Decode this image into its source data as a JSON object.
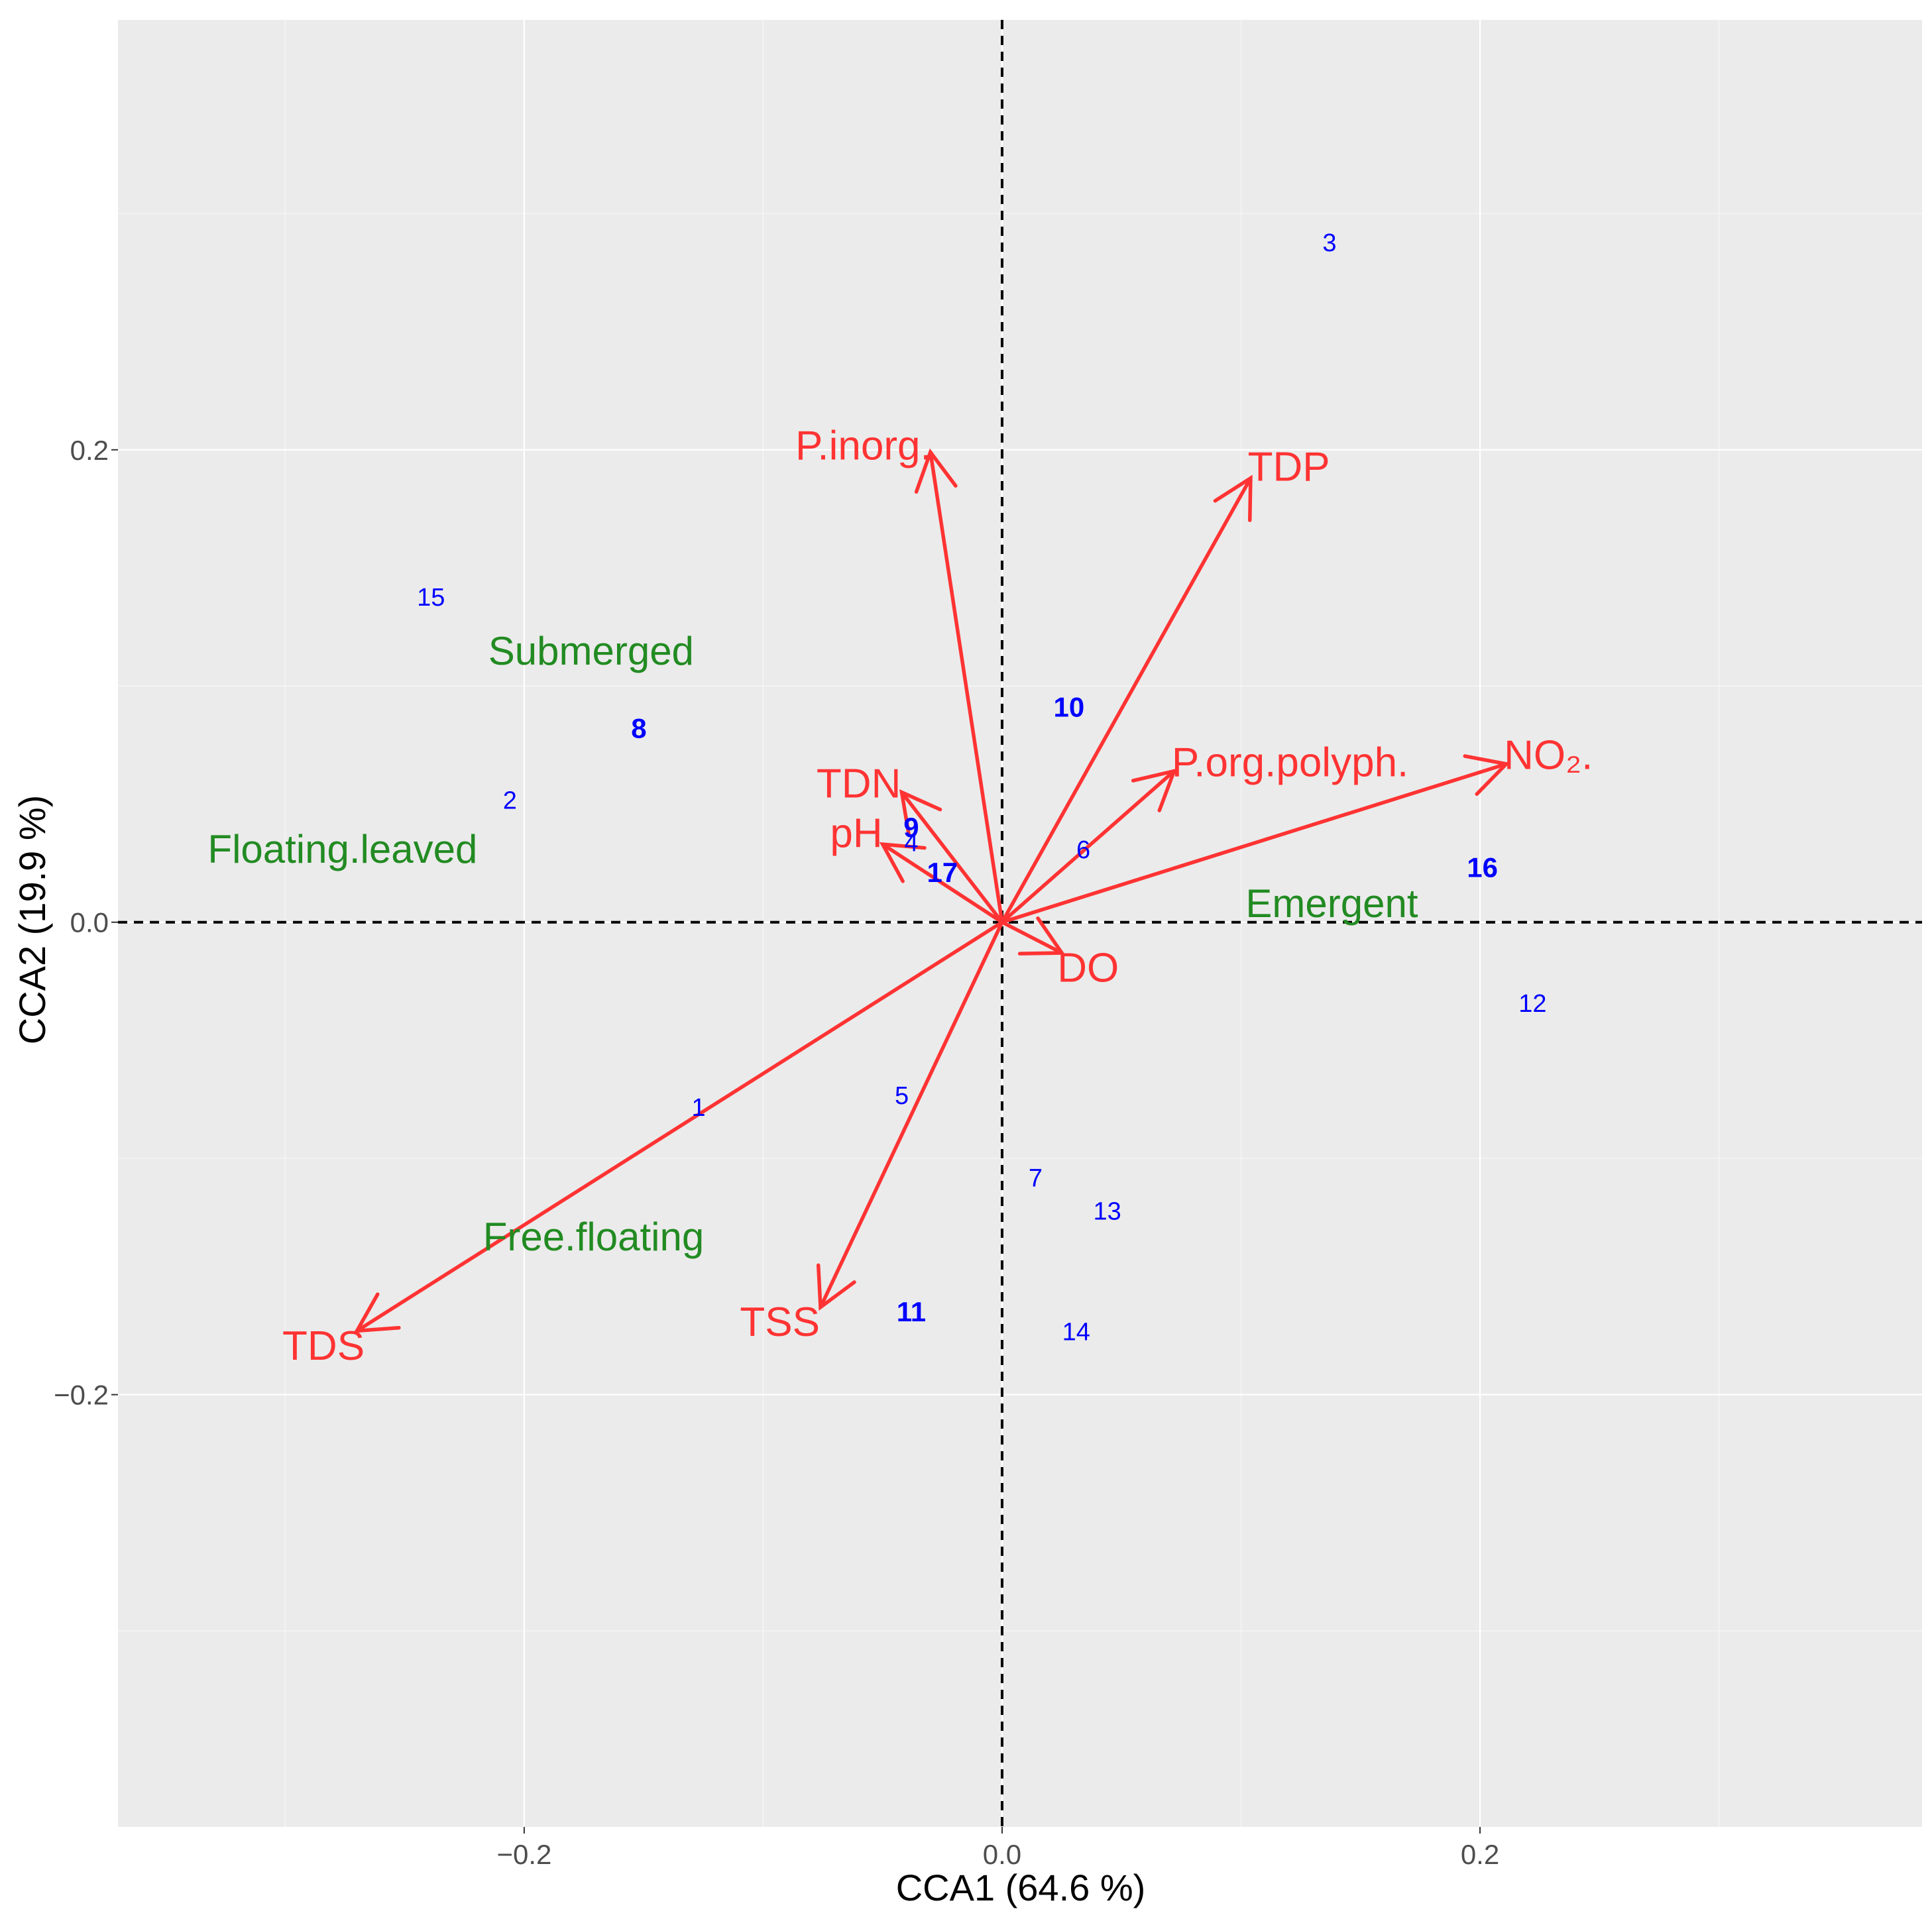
{
  "chart_data": {
    "type": "scatter",
    "subtype": "CCA biplot",
    "xlabel": "CCA1 (64.6 %)",
    "ylabel": "CCA2 (19.9 %)",
    "xlim": [
      -0.37,
      0.385
    ],
    "ylim": [
      -0.383,
      0.382
    ],
    "x_ticks": [
      {
        "value": -0.2,
        "label": "−0.2"
      },
      {
        "value": 0.0,
        "label": "0.0"
      },
      {
        "value": 0.2,
        "label": "0.2"
      }
    ],
    "y_ticks": [
      {
        "value": 0.2,
        "label": "0.2"
      },
      {
        "value": 0.0,
        "label": "0.0"
      },
      {
        "value": -0.2,
        "label": "−0.2"
      }
    ],
    "colors": {
      "arrows": "#ff3333",
      "sites": "#0000ff",
      "groups": "#228b22"
    },
    "environmental_vectors": [
      {
        "name": "P.inorg.",
        "x": -0.03,
        "y": 0.199,
        "label_x": -0.058,
        "label_y": 0.202,
        "label_anchor": "middle"
      },
      {
        "name": "TDP",
        "x": 0.104,
        "y": 0.188,
        "label_x": 0.12,
        "label_y": 0.193,
        "label_anchor": "middle"
      },
      {
        "name": "P.org.polyph.",
        "x": 0.072,
        "y": 0.064,
        "label_x": 0.071,
        "label_y": 0.068,
        "label_anchor": "start"
      },
      {
        "name": "NO₂.",
        "x": 0.211,
        "y": 0.067,
        "label_x": 0.21,
        "label_y": 0.071,
        "label_anchor": "start"
      },
      {
        "name": "TDN",
        "x": -0.042,
        "y": 0.055,
        "label_x": -0.06,
        "label_y": 0.059,
        "label_anchor": "middle"
      },
      {
        "name": "pH",
        "x": -0.05,
        "y": 0.033,
        "label_x": -0.061,
        "label_y": 0.038,
        "label_anchor": "middle"
      },
      {
        "name": "DO",
        "x": 0.025,
        "y": -0.013,
        "label_x": 0.036,
        "label_y": -0.019,
        "label_anchor": "middle"
      },
      {
        "name": "TSS",
        "x": -0.076,
        "y": -0.163,
        "label_x": -0.093,
        "label_y": -0.169,
        "label_anchor": "middle"
      },
      {
        "name": "TDS",
        "x": -0.27,
        "y": -0.173,
        "label_x": -0.284,
        "label_y": -0.179,
        "label_anchor": "middle"
      }
    ],
    "sites": [
      {
        "label": "1",
        "x": -0.127,
        "y": -0.078,
        "bold": false
      },
      {
        "label": "2",
        "x": -0.206,
        "y": 0.052,
        "bold": false
      },
      {
        "label": "3",
        "x": 0.137,
        "y": 0.288,
        "bold": false
      },
      {
        "label": "4",
        "x": -0.038,
        "y": 0.034,
        "bold": false
      },
      {
        "label": "5",
        "x": -0.042,
        "y": -0.073,
        "bold": false
      },
      {
        "label": "6",
        "x": 0.034,
        "y": 0.031,
        "bold": false
      },
      {
        "label": "7",
        "x": 0.014,
        "y": -0.108,
        "bold": false
      },
      {
        "label": "8",
        "x": -0.152,
        "y": 0.082,
        "bold": true
      },
      {
        "label": "9",
        "x": -0.038,
        "y": 0.04,
        "bold": true
      },
      {
        "label": "10",
        "x": 0.028,
        "y": 0.091,
        "bold": true
      },
      {
        "label": "11",
        "x": -0.038,
        "y": -0.165,
        "bold": true
      },
      {
        "label": "12",
        "x": 0.222,
        "y": -0.034,
        "bold": false
      },
      {
        "label": "13",
        "x": 0.044,
        "y": -0.122,
        "bold": false
      },
      {
        "label": "14",
        "x": 0.031,
        "y": -0.173,
        "bold": false
      },
      {
        "label": "15",
        "x": -0.239,
        "y": 0.138,
        "bold": false
      },
      {
        "label": "16",
        "x": 0.201,
        "y": 0.023,
        "bold": true
      },
      {
        "label": "17",
        "x": -0.025,
        "y": 0.021,
        "bold": true
      }
    ],
    "groups": [
      {
        "name": "Submerged",
        "x": -0.172,
        "y": 0.115
      },
      {
        "name": "Floating.leaved",
        "x": -0.276,
        "y": 0.031
      },
      {
        "name": "Emergent",
        "x": 0.138,
        "y": 0.008
      },
      {
        "name": "Free.floating",
        "x": -0.171,
        "y": -0.133
      }
    ]
  }
}
